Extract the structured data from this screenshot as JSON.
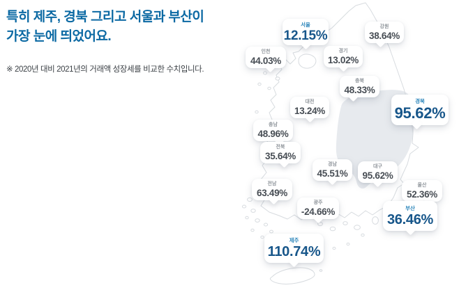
{
  "title": {
    "line1": "특히 제주, 경북 그리고 서울과 부산이",
    "line2": "가장 눈에 띄었어요."
  },
  "footnote": "※ 2020년 대비 2021년의 거래액 성장세를 비교한 수치입니다.",
  "colors": {
    "title_blue": "#0b69a3",
    "highlight_value_blue": "#17568a",
    "highlight_name_blue": "#2b85ba",
    "normal_value_gray": "#474d54",
    "normal_name_gray": "#8f959b",
    "map_outline": "#d7dbdf",
    "highlighted_region_fill": "#e7eaee"
  },
  "regions": [
    {
      "id": "seoul",
      "name": "서울",
      "value": "12.15%",
      "highlighted": true
    },
    {
      "id": "gangwon",
      "name": "강원",
      "value": "38.64%",
      "highlighted": false
    },
    {
      "id": "incheon",
      "name": "인천",
      "value": "44.03%",
      "highlighted": false
    },
    {
      "id": "gyeonggi",
      "name": "경기",
      "value": "13.02%",
      "highlighted": false
    },
    {
      "id": "chungbuk",
      "name": "충북",
      "value": "48.33%",
      "highlighted": false
    },
    {
      "id": "daejeon",
      "name": "대전",
      "value": "13.24%",
      "highlighted": false
    },
    {
      "id": "gyeongbuk",
      "name": "경북",
      "value": "95.62%",
      "highlighted": true
    },
    {
      "id": "chungnam",
      "name": "충남",
      "value": "48.96%",
      "highlighted": false
    },
    {
      "id": "jeonbuk",
      "name": "전북",
      "value": "35.64%",
      "highlighted": false
    },
    {
      "id": "gyeongnam",
      "name": "경남",
      "value": "45.51%",
      "highlighted": false
    },
    {
      "id": "daegu",
      "name": "대구",
      "value": "95.62%",
      "highlighted": false
    },
    {
      "id": "jeonnam",
      "name": "전남",
      "value": "63.49%",
      "highlighted": false
    },
    {
      "id": "ulsan",
      "name": "울산",
      "value": "52.36%",
      "highlighted": false
    },
    {
      "id": "gwangju",
      "name": "광주",
      "value": "-24.66%",
      "highlighted": false
    },
    {
      "id": "busan",
      "name": "부산",
      "value": "36.46%",
      "highlighted": true
    },
    {
      "id": "jeju",
      "name": "제주",
      "value": "110.74%",
      "highlighted": true
    }
  ],
  "chart_data": {
    "type": "heatmap",
    "subtype": "korea-region-map-infographic",
    "title": "특히 제주, 경북 그리고 서울과 부산이 가장 눈에 띄었어요.",
    "note": "※ 2020년 대비 2021년의 거래액 성장세를 비교한 수치입니다.",
    "unit": "%",
    "categories": [
      "서울",
      "강원",
      "인천",
      "경기",
      "충북",
      "대전",
      "경북",
      "충남",
      "전북",
      "경남",
      "대구",
      "전남",
      "울산",
      "광주",
      "부산",
      "제주"
    ],
    "values": [
      12.15,
      38.64,
      44.03,
      13.02,
      48.33,
      13.24,
      95.62,
      48.96,
      35.64,
      45.51,
      95.62,
      63.49,
      52.36,
      -24.66,
      36.46,
      110.74
    ],
    "highlighted": [
      "서울",
      "경북",
      "부산",
      "제주"
    ],
    "legend_position": "none",
    "grid": false
  }
}
